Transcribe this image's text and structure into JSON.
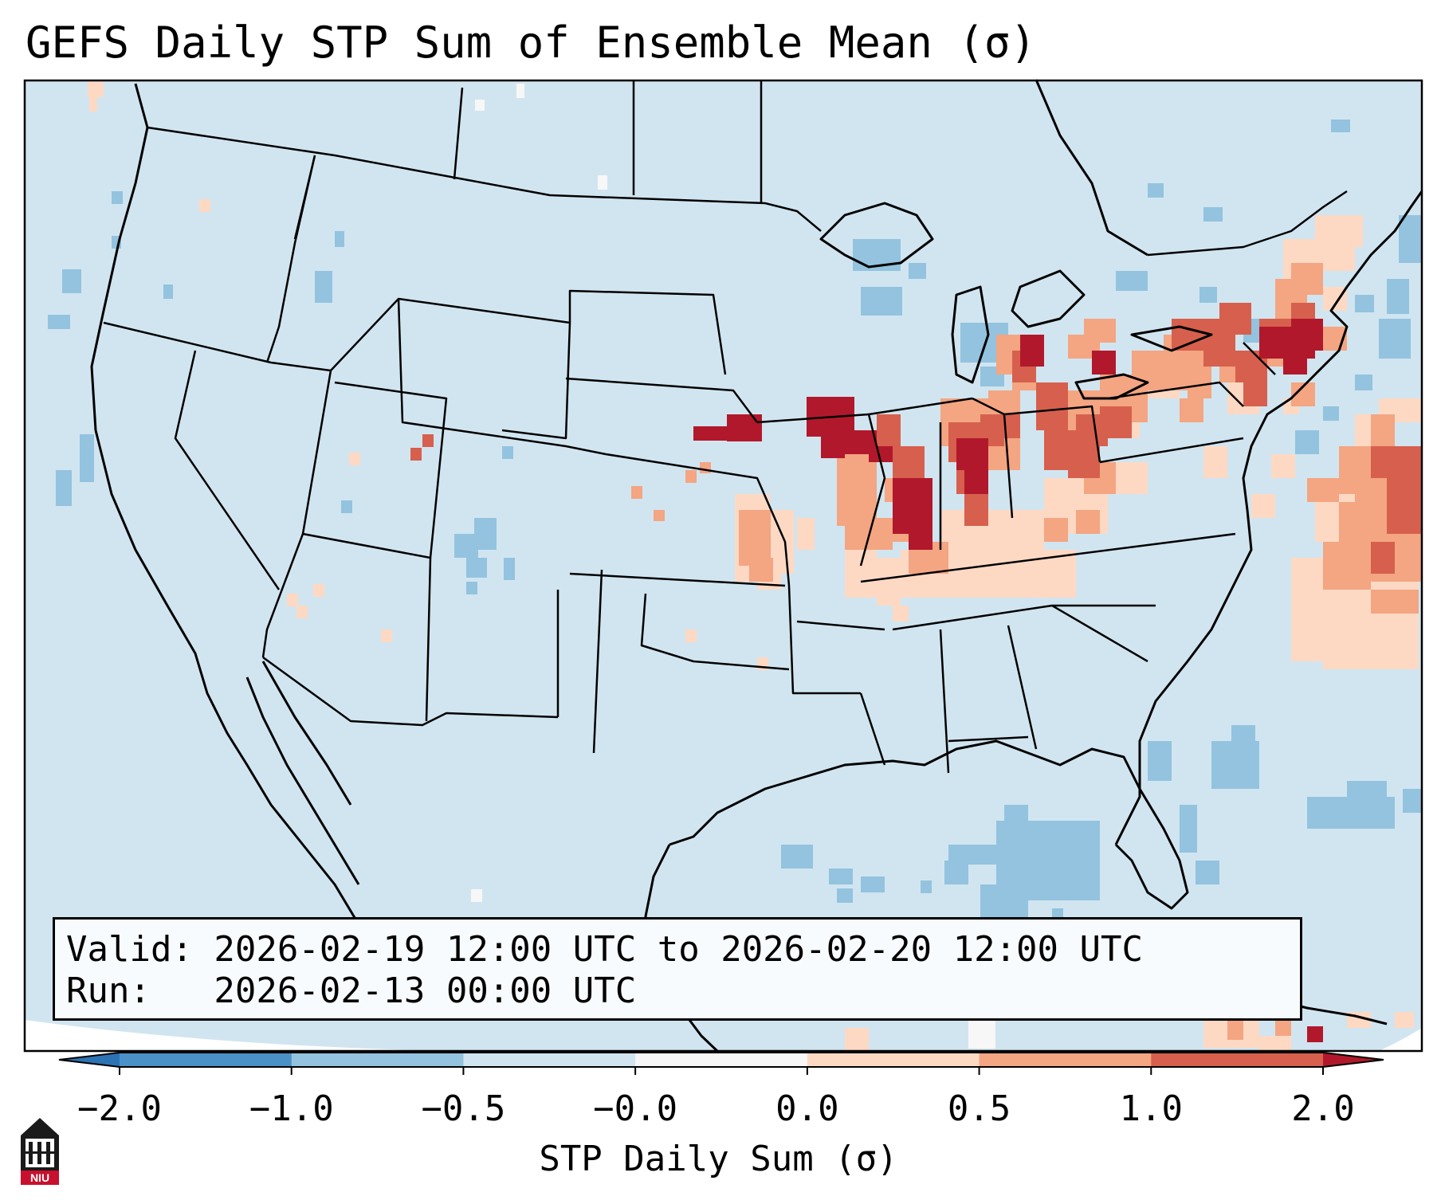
{
  "title": "GEFS Daily STP Sum of Ensemble Mean (σ)",
  "info": {
    "valid_line": "Valid: 2026-02-19 12:00 UTC to 2026-02-20 12:00 UTC",
    "run_line": "Run:   2026-02-13 00:00 UTC"
  },
  "colorbar": {
    "label": "STP Daily Sum (σ)",
    "ticks": [
      "−2.0",
      "−1.0",
      "−0.5",
      "−0.0",
      "0.0",
      "0.5",
      "1.0",
      "2.0"
    ],
    "bins": [
      {
        "range": "< -2.0",
        "color": "#2c73b4"
      },
      {
        "range": "-2.0 to -1.0",
        "color": "#4a91c8"
      },
      {
        "range": "-1.0 to -0.5",
        "color": "#93c3df"
      },
      {
        "range": "-0.5 to -0.0",
        "color": "#d1e5f0"
      },
      {
        "range": "-0.0 to 0.0",
        "color": "#f7f7f7"
      },
      {
        "range": "0.0 to 0.5",
        "color": "#fdd9c4"
      },
      {
        "range": "0.5 to 1.0",
        "color": "#f4a582"
      },
      {
        "range": "1.0 to 2.0",
        "color": "#d6604d"
      },
      {
        "range": "> 2.0",
        "color": "#b2182b"
      }
    ]
  },
  "colors": {
    "background_field": "#d1e5f0",
    "slightly_negative": "#93c3df",
    "neutral": "#f7f7f7",
    "slightly_positive": "#fdd9c4",
    "moderate_positive": "#f4a582",
    "high_positive": "#d6604d",
    "very_high": "#b2182b",
    "logo": "#c8102e"
  },
  "logo": {
    "text": "NIU"
  }
}
